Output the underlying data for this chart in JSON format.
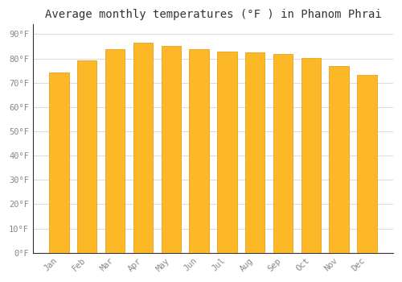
{
  "months": [
    "Jan",
    "Feb",
    "Mar",
    "Apr",
    "May",
    "Jun",
    "Jul",
    "Aug",
    "Sep",
    "Oct",
    "Nov",
    "Dec"
  ],
  "values": [
    74.3,
    79.2,
    84.0,
    86.4,
    85.1,
    83.8,
    82.9,
    82.4,
    81.9,
    80.2,
    76.8,
    73.4
  ],
  "bar_color": "#FDB827",
  "bar_edge_color": "#E8A020",
  "background_color": "#ffffff",
  "plot_bg_color": "#ffffff",
  "grid_color": "#dddddd",
  "title": "Average monthly temperatures (°F ) in Phanom Phrai",
  "title_fontsize": 10,
  "ylabel_ticks": [
    "0°F",
    "10°F",
    "20°F",
    "30°F",
    "40°F",
    "50°F",
    "60°F",
    "70°F",
    "80°F",
    "90°F"
  ],
  "ytick_values": [
    0,
    10,
    20,
    30,
    40,
    50,
    60,
    70,
    80,
    90
  ],
  "ylim": [
    0,
    94
  ],
  "tick_fontsize": 7.5,
  "tick_color": "#888888",
  "title_color": "#333333",
  "spine_color": "#333333",
  "bar_width": 0.7
}
